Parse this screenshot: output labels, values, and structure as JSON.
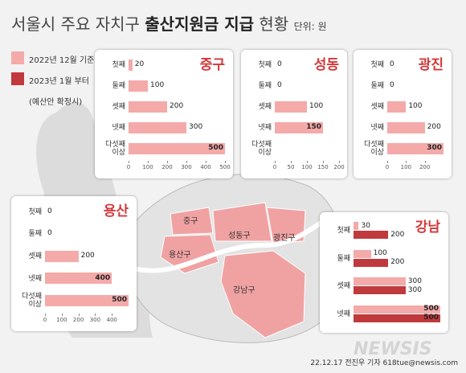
{
  "header": {
    "title_plain": "서울시 주요 자치구",
    "title_bold": "출산지원금 지급",
    "title_end": "현황",
    "unit": "단위: 원"
  },
  "legend": [
    {
      "label": "2022년 12월 기준",
      "color": "#f4aaa9"
    },
    {
      "label": "2023년 1월 부터",
      "color": "#c0393c"
    }
  ],
  "legend_note": "(예산안 확정시)",
  "chart_data": [
    {
      "type": "bar",
      "title": "중구",
      "categories": [
        "첫째",
        "둘째",
        "셋째",
        "넷째",
        "다섯째\n이상"
      ],
      "series": [
        {
          "color": "#f4aaa9",
          "values": [
            20,
            100,
            200,
            300,
            500
          ]
        }
      ],
      "xlim": [
        0,
        500
      ],
      "xticks": [
        0,
        100,
        200,
        300,
        400,
        500
      ]
    },
    {
      "type": "bar",
      "title": "성동",
      "categories": [
        "첫째",
        "둘째",
        "셋째",
        "넷째",
        "다섯째\n이상"
      ],
      "series": [
        {
          "color": "#f4aaa9",
          "values": [
            0,
            0,
            100,
            150,
            null
          ]
        }
      ],
      "xlim": [
        0,
        200
      ],
      "xticks": [
        0,
        50,
        100,
        150,
        200
      ]
    },
    {
      "type": "bar",
      "title": "광진",
      "categories": [
        "첫째",
        "둘째",
        "셋째",
        "넷째",
        "다섯째\n이상"
      ],
      "series": [
        {
          "color": "#f4aaa9",
          "values": [
            0,
            0,
            100,
            200,
            300
          ]
        }
      ],
      "xlim": [
        0,
        300
      ],
      "xticks": [
        0,
        100,
        200
      ]
    },
    {
      "type": "bar",
      "title": "용산",
      "categories": [
        "첫째",
        "둘째",
        "셋째",
        "넷째",
        "다섯째\n이상"
      ],
      "series": [
        {
          "color": "#f4aaa9",
          "values": [
            0,
            0,
            200,
            400,
            500
          ]
        }
      ],
      "xlim": [
        0,
        500
      ],
      "xticks": [
        0,
        100,
        200,
        300,
        400
      ]
    },
    {
      "type": "bar",
      "title": "강남",
      "categories": [
        "첫째",
        "둘째",
        "셋째",
        "넷째"
      ],
      "series": [
        {
          "color": "#f4aaa9",
          "values": [
            30,
            100,
            300,
            500
          ]
        },
        {
          "color": "#c0393c",
          "values": [
            200,
            200,
            300,
            500
          ]
        }
      ],
      "xlim": [
        0,
        500
      ]
    }
  ],
  "map_labels": [
    "중구",
    "성동구",
    "광진구",
    "용산구",
    "강남구"
  ],
  "watermark": "NEWSIS",
  "credit": "22.12.17 전진우 기자 618tue@newsis.com"
}
